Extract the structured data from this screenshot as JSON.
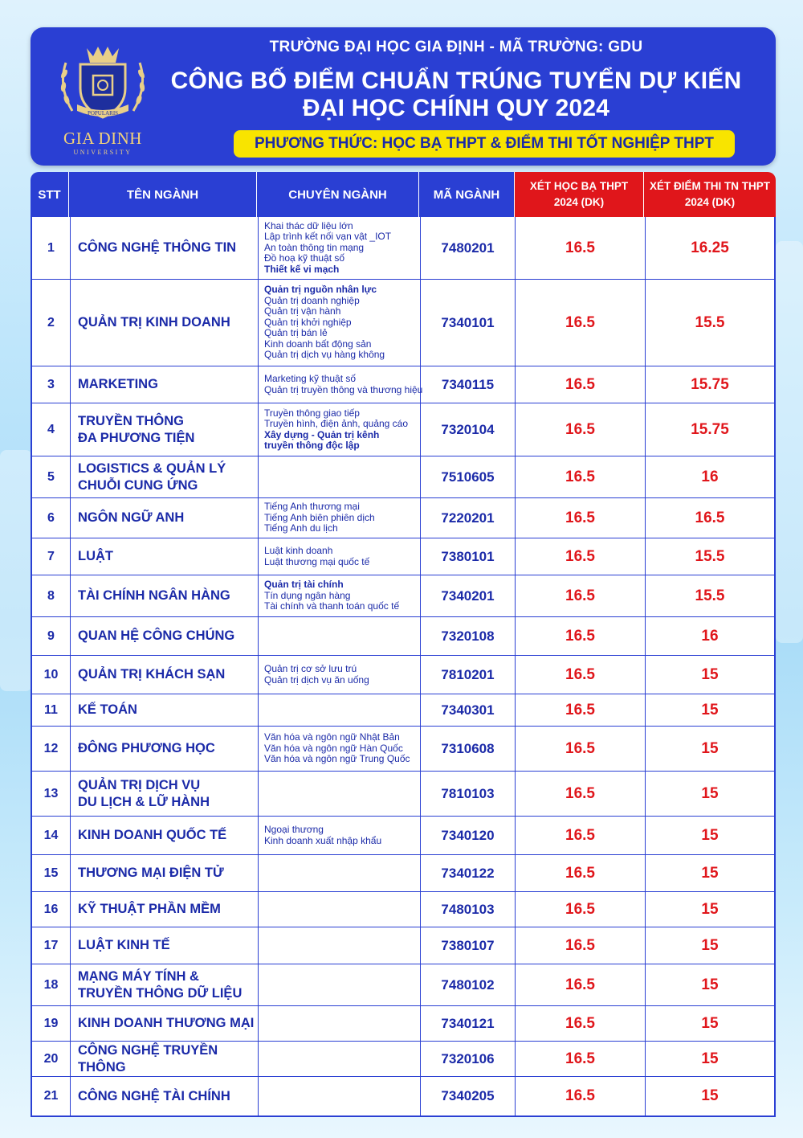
{
  "header": {
    "logo_main": "GIA DINH",
    "logo_sub": "UNIVERSITY",
    "logo_ribbon": "POPULARIS",
    "school_line": "TRƯỜNG ĐẠI HỌC GIA ĐỊNH - MÃ TRƯỜNG: GDU",
    "title_line1": "CÔNG BỐ ĐIỂM CHUẨN TRÚNG TUYỂN DỰ KIẾN",
    "title_line2": "ĐẠI HỌC CHÍNH QUY 2024",
    "method": "PHƯƠNG THỨC: HỌC BẠ THPT & ĐIỂM THI TỐT NGHIỆP THPT"
  },
  "columns": {
    "stt": "STT",
    "name": "TÊN NGÀNH",
    "spec": "CHUYÊN NGÀNH",
    "code": "MÃ NGÀNH",
    "s1_line1": "XÉT HỌC BẠ THPT",
    "s1_line2": "2024 (DK)",
    "s2_line1": "XÉT ĐIỂM THI TN THPT",
    "s2_line2": "2024 (DK)"
  },
  "colors": {
    "blue": "#2a3fd3",
    "red": "#e0161b",
    "yellow": "#f8e400",
    "text_blue": "#1b2aa8"
  },
  "rows": [
    {
      "stt": "1",
      "name": [
        "CÔNG NGHỆ THÔNG TIN"
      ],
      "spec": [
        {
          "t": "Khai thác dữ liệu lớn"
        },
        {
          "t": "Lập trình kết nối vạn vật _IOT"
        },
        {
          "t": "An toàn thông tin mạng"
        },
        {
          "t": "Đồ hoạ kỹ thuật số"
        },
        {
          "t": "Thiết kế vi mạch",
          "b": true
        }
      ],
      "code": "7480201",
      "s1": "16.5",
      "s2": "16.25"
    },
    {
      "stt": "2",
      "name": [
        "QUẢN TRỊ KINH DOANH"
      ],
      "spec": [
        {
          "t": "Quản trị nguồn nhân lực",
          "b": true
        },
        {
          "t": "Quản trị doanh nghiệp"
        },
        {
          "t": "Quản trị vận hành"
        },
        {
          "t": "Quản trị khởi nghiệp"
        },
        {
          "t": "Quản trị bán lẻ"
        },
        {
          "t": "Kinh doanh bất động sản"
        },
        {
          "t": "Quản trị dịch vụ hàng không"
        }
      ],
      "code": "7340101",
      "s1": "16.5",
      "s2": "15.5"
    },
    {
      "stt": "3",
      "name": [
        "MARKETING"
      ],
      "spec": [
        {
          "t": "Marketing kỹ thuật số"
        },
        {
          "t": "Quản trị truyền thông và thương hiệu"
        }
      ],
      "code": "7340115",
      "s1": "16.5",
      "s2": "15.75"
    },
    {
      "stt": "4",
      "name": [
        "TRUYỀN THÔNG",
        "ĐA PHƯƠNG TIỆN"
      ],
      "spec": [
        {
          "t": "Truyền thông giao tiếp"
        },
        {
          "t": "Truyền hình, điện ảnh, quảng cáo"
        },
        {
          "t": "Xây dựng - Quản trị kênh",
          "b": true
        },
        {
          "t": "truyền thông độc lập",
          "b": true
        }
      ],
      "code": "7320104",
      "s1": "16.5",
      "s2": "15.75"
    },
    {
      "stt": "5",
      "name": [
        "LOGISTICS & QUẢN LÝ",
        "CHUỖI CUNG ỨNG"
      ],
      "spec": [],
      "code": "7510605",
      "s1": "16.5",
      "s2": "16"
    },
    {
      "stt": "6",
      "name": [
        "NGÔN NGỮ ANH"
      ],
      "spec": [
        {
          "t": "Tiếng Anh thương mại"
        },
        {
          "t": "Tiếng Anh biên phiên dịch"
        },
        {
          "t": "Tiếng Anh du lịch"
        }
      ],
      "code": "7220201",
      "s1": "16.5",
      "s2": "16.5"
    },
    {
      "stt": "7",
      "name": [
        "LUẬT"
      ],
      "spec": [
        {
          "t": "Luật kinh doanh"
        },
        {
          "t": "Luật thương mại quốc tế"
        }
      ],
      "code": "7380101",
      "s1": "16.5",
      "s2": "15.5"
    },
    {
      "stt": "8",
      "name": [
        "TÀI CHÍNH NGÂN HÀNG"
      ],
      "spec": [
        {
          "t": "Quản trị tài chính",
          "b": true
        },
        {
          "t": "Tín dụng ngân hàng"
        },
        {
          "t": "Tài chính và thanh toán quốc tế"
        }
      ],
      "code": "7340201",
      "s1": "16.5",
      "s2": "15.5"
    },
    {
      "stt": "9",
      "name": [
        "QUAN HỆ CÔNG CHÚNG"
      ],
      "spec": [],
      "code": "7320108",
      "s1": "16.5",
      "s2": "16"
    },
    {
      "stt": "10",
      "name": [
        "QUẢN TRỊ KHÁCH SẠN"
      ],
      "spec": [
        {
          "t": "Quản trị cơ sở lưu trú"
        },
        {
          "t": "Quản trị dịch vụ ăn uống"
        }
      ],
      "code": "7810201",
      "s1": "16.5",
      "s2": "15"
    },
    {
      "stt": "11",
      "name": [
        "KẾ TOÁN"
      ],
      "spec": [],
      "code": "7340301",
      "s1": "16.5",
      "s2": "15"
    },
    {
      "stt": "12",
      "name": [
        "ĐÔNG PHƯƠNG HỌC"
      ],
      "spec": [
        {
          "t": "Văn hóa và ngôn ngữ Nhật Bản"
        },
        {
          "t": "Văn hóa và ngôn ngữ Hàn Quốc"
        },
        {
          "t": "Văn hóa và ngôn ngữ Trung Quốc"
        }
      ],
      "code": "7310608",
      "s1": "16.5",
      "s2": "15"
    },
    {
      "stt": "13",
      "name": [
        "QUẢN TRỊ DỊCH VỤ",
        "DU LỊCH & LỮ HÀNH"
      ],
      "spec": [],
      "code": "7810103",
      "s1": "16.5",
      "s2": "15"
    },
    {
      "stt": "14",
      "name": [
        "KINH DOANH QUỐC TẾ"
      ],
      "spec": [
        {
          "t": "Ngoại thương"
        },
        {
          "t": "Kinh doanh xuất nhập khẩu"
        }
      ],
      "code": "7340120",
      "s1": "16.5",
      "s2": "15"
    },
    {
      "stt": "15",
      "name": [
        "THƯƠNG MẠI ĐIỆN TỬ"
      ],
      "spec": [],
      "code": "7340122",
      "s1": "16.5",
      "s2": "15"
    },
    {
      "stt": "16",
      "name": [
        "KỸ THUẬT PHẦN MỀM"
      ],
      "spec": [],
      "code": "7480103",
      "s1": "16.5",
      "s2": "15"
    },
    {
      "stt": "17",
      "name": [
        "LUẬT KINH TẾ"
      ],
      "spec": [],
      "code": "7380107",
      "s1": "16.5",
      "s2": "15"
    },
    {
      "stt": "18",
      "name": [
        "MẠNG MÁY TÍNH &",
        "TRUYỀN THÔNG DỮ LIỆU"
      ],
      "spec": [],
      "code": "7480102",
      "s1": "16.5",
      "s2": "15"
    },
    {
      "stt": "19",
      "name": [
        "KINH DOANH THƯƠNG MẠI"
      ],
      "spec": [],
      "code": "7340121",
      "s1": "16.5",
      "s2": "15"
    },
    {
      "stt": "20",
      "name": [
        "CÔNG NGHỆ TRUYỀN THÔNG"
      ],
      "spec": [],
      "code": "7320106",
      "s1": "16.5",
      "s2": "15"
    },
    {
      "stt": "21",
      "name": [
        "CÔNG NGHỆ TÀI CHÍNH"
      ],
      "spec": [],
      "code": "7340205",
      "s1": "16.5",
      "s2": "15"
    }
  ]
}
